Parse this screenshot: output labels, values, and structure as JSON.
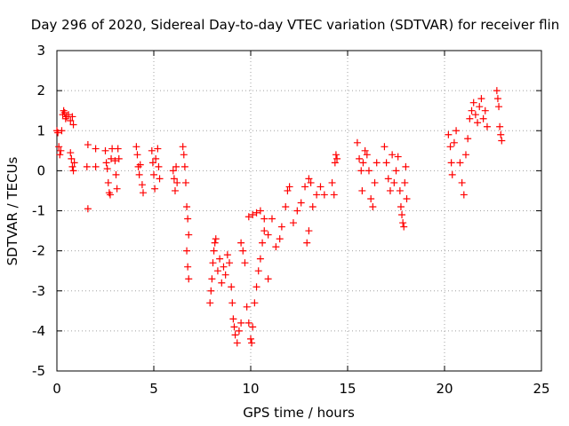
{
  "chart_data": {
    "type": "scatter",
    "title": "Day 296 of 2020, Sidereal Day-to-day VTEC variation (SDTVAR) for receiver flin",
    "xlabel": "GPS time / hours",
    "ylabel": "SDTVAR / TECUs",
    "xlim": [
      0,
      25
    ],
    "ylim": [
      -5,
      3
    ],
    "x_ticks": [
      0,
      5,
      10,
      15,
      20,
      25
    ],
    "y_ticks": [
      -5,
      -4,
      -3,
      -2,
      -1,
      0,
      1,
      2,
      3
    ],
    "grid": true,
    "marker": "+",
    "color": "#ff0000",
    "series": [
      {
        "name": "SDTVAR",
        "points": [
          [
            0.0,
            1.0
          ],
          [
            0.05,
            0.95
          ],
          [
            0.1,
            0.6
          ],
          [
            0.15,
            0.4
          ],
          [
            0.2,
            0.5
          ],
          [
            0.25,
            1.0
          ],
          [
            0.3,
            1.4
          ],
          [
            0.35,
            1.5
          ],
          [
            0.4,
            1.45
          ],
          [
            0.45,
            1.3
          ],
          [
            0.5,
            1.35
          ],
          [
            0.6,
            1.4
          ],
          [
            0.7,
            1.25
          ],
          [
            0.8,
            1.35
          ],
          [
            0.85,
            1.15
          ],
          [
            0.7,
            0.45
          ],
          [
            0.75,
            0.3
          ],
          [
            0.8,
            0.1
          ],
          [
            0.85,
            0.0
          ],
          [
            0.9,
            0.2
          ],
          [
            1.6,
            0.65
          ],
          [
            1.55,
            0.1
          ],
          [
            1.6,
            -0.95
          ],
          [
            2.0,
            0.55
          ],
          [
            2.0,
            0.1
          ],
          [
            2.5,
            0.5
          ],
          [
            2.55,
            0.2
          ],
          [
            2.6,
            0.05
          ],
          [
            2.65,
            -0.3
          ],
          [
            2.7,
            -0.55
          ],
          [
            2.75,
            -0.6
          ],
          [
            2.8,
            0.3
          ],
          [
            2.85,
            0.55
          ],
          [
            3.0,
            0.25
          ],
          [
            3.05,
            -0.1
          ],
          [
            3.1,
            -0.45
          ],
          [
            3.15,
            0.55
          ],
          [
            3.2,
            0.3
          ],
          [
            4.1,
            0.6
          ],
          [
            4.15,
            0.4
          ],
          [
            4.2,
            0.1
          ],
          [
            4.25,
            -0.1
          ],
          [
            4.3,
            0.15
          ],
          [
            4.4,
            -0.35
          ],
          [
            4.45,
            -0.55
          ],
          [
            4.9,
            0.5
          ],
          [
            4.95,
            0.2
          ],
          [
            5.0,
            -0.1
          ],
          [
            5.05,
            -0.45
          ],
          [
            5.1,
            0.3
          ],
          [
            5.2,
            0.55
          ],
          [
            5.25,
            0.1
          ],
          [
            5.3,
            -0.2
          ],
          [
            6.0,
            0.0
          ],
          [
            6.05,
            -0.2
          ],
          [
            6.1,
            -0.5
          ],
          [
            6.15,
            0.1
          ],
          [
            6.2,
            -0.3
          ],
          [
            6.5,
            0.6
          ],
          [
            6.55,
            0.4
          ],
          [
            6.6,
            0.1
          ],
          [
            6.65,
            -0.3
          ],
          [
            6.7,
            -0.9
          ],
          [
            6.75,
            -1.2
          ],
          [
            6.8,
            -1.6
          ],
          [
            6.7,
            -2.0
          ],
          [
            6.75,
            -2.4
          ],
          [
            6.8,
            -2.7
          ],
          [
            7.9,
            -3.3
          ],
          [
            7.95,
            -3.0
          ],
          [
            8.0,
            -2.7
          ],
          [
            8.05,
            -2.3
          ],
          [
            8.1,
            -2.0
          ],
          [
            8.15,
            -1.8
          ],
          [
            8.2,
            -1.7
          ],
          [
            8.3,
            -2.5
          ],
          [
            8.4,
            -2.2
          ],
          [
            8.5,
            -2.8
          ],
          [
            8.6,
            -2.4
          ],
          [
            8.7,
            -2.6
          ],
          [
            8.8,
            -2.1
          ],
          [
            8.9,
            -2.3
          ],
          [
            9.0,
            -2.9
          ],
          [
            9.05,
            -3.3
          ],
          [
            9.1,
            -3.7
          ],
          [
            9.15,
            -3.9
          ],
          [
            9.2,
            -4.1
          ],
          [
            9.3,
            -4.3
          ],
          [
            9.4,
            -4.0
          ],
          [
            9.5,
            -3.8
          ],
          [
            9.5,
            -1.8
          ],
          [
            9.6,
            -2.0
          ],
          [
            9.7,
            -2.3
          ],
          [
            9.8,
            -3.4
          ],
          [
            9.9,
            -3.8
          ],
          [
            10.0,
            -4.2
          ],
          [
            10.05,
            -4.3
          ],
          [
            10.1,
            -3.9
          ],
          [
            10.2,
            -3.3
          ],
          [
            10.3,
            -2.9
          ],
          [
            10.4,
            -2.5
          ],
          [
            10.5,
            -2.2
          ],
          [
            10.6,
            -1.8
          ],
          [
            10.7,
            -1.5
          ],
          [
            9.9,
            -1.15
          ],
          [
            10.1,
            -1.1
          ],
          [
            10.3,
            -1.05
          ],
          [
            10.5,
            -1.0
          ],
          [
            10.7,
            -1.2
          ],
          [
            10.9,
            -2.7
          ],
          [
            10.9,
            -1.6
          ],
          [
            11.1,
            -1.2
          ],
          [
            11.3,
            -1.9
          ],
          [
            11.5,
            -1.7
          ],
          [
            11.6,
            -1.4
          ],
          [
            11.8,
            -0.9
          ],
          [
            11.9,
            -0.5
          ],
          [
            12.0,
            -0.4
          ],
          [
            12.2,
            -1.3
          ],
          [
            12.4,
            -1.0
          ],
          [
            12.6,
            -0.8
          ],
          [
            12.8,
            -0.4
          ],
          [
            13.0,
            -0.2
          ],
          [
            13.1,
            -0.3
          ],
          [
            12.9,
            -1.8
          ],
          [
            13.0,
            -1.5
          ],
          [
            13.2,
            -0.9
          ],
          [
            13.4,
            -0.6
          ],
          [
            13.6,
            -0.4
          ],
          [
            13.8,
            -0.6
          ],
          [
            14.2,
            -0.3
          ],
          [
            14.3,
            -0.6
          ],
          [
            14.35,
            0.2
          ],
          [
            14.4,
            0.4
          ],
          [
            14.45,
            0.3
          ],
          [
            15.5,
            0.7
          ],
          [
            15.6,
            0.3
          ],
          [
            15.7,
            0.0
          ],
          [
            15.75,
            -0.5
          ],
          [
            15.8,
            0.2
          ],
          [
            15.9,
            0.5
          ],
          [
            16.0,
            0.4
          ],
          [
            16.1,
            0.0
          ],
          [
            16.2,
            -0.7
          ],
          [
            16.3,
            -0.9
          ],
          [
            16.4,
            -0.3
          ],
          [
            16.5,
            0.2
          ],
          [
            16.9,
            0.6
          ],
          [
            17.0,
            0.2
          ],
          [
            17.1,
            -0.2
          ],
          [
            17.2,
            -0.5
          ],
          [
            17.3,
            0.4
          ],
          [
            17.4,
            -0.3
          ],
          [
            17.5,
            0.0
          ],
          [
            17.6,
            0.35
          ],
          [
            17.7,
            -0.5
          ],
          [
            17.75,
            -0.9
          ],
          [
            17.8,
            -1.1
          ],
          [
            17.85,
            -1.3
          ],
          [
            17.9,
            -1.4
          ],
          [
            17.95,
            -0.3
          ],
          [
            18.0,
            0.1
          ],
          [
            18.05,
            -0.7
          ],
          [
            20.2,
            0.9
          ],
          [
            20.3,
            0.6
          ],
          [
            20.35,
            0.2
          ],
          [
            20.4,
            -0.1
          ],
          [
            20.5,
            0.7
          ],
          [
            20.6,
            1.0
          ],
          [
            20.8,
            0.2
          ],
          [
            20.9,
            -0.3
          ],
          [
            21.0,
            -0.6
          ],
          [
            21.1,
            0.4
          ],
          [
            21.2,
            0.8
          ],
          [
            21.3,
            1.3
          ],
          [
            21.4,
            1.5
          ],
          [
            21.5,
            1.7
          ],
          [
            21.6,
            1.4
          ],
          [
            21.7,
            1.2
          ],
          [
            21.8,
            1.6
          ],
          [
            21.9,
            1.8
          ],
          [
            22.0,
            1.3
          ],
          [
            22.1,
            1.5
          ],
          [
            22.2,
            1.1
          ],
          [
            22.7,
            2.0
          ],
          [
            22.75,
            1.8
          ],
          [
            22.8,
            1.6
          ],
          [
            22.85,
            1.1
          ],
          [
            22.9,
            0.9
          ],
          [
            22.95,
            0.75
          ]
        ]
      }
    ]
  }
}
